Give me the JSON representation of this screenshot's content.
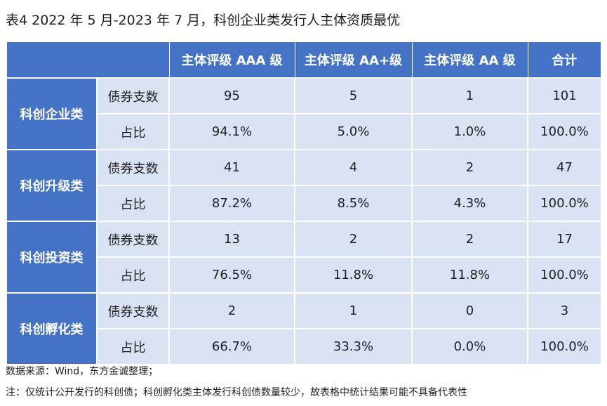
{
  "title": "表4   2022 年 5 月-2023 年 7 月，科创企业类发行人主体资质最优",
  "header": {
    "col0": "",
    "col1": "",
    "col2": "主体评级 AAA 级",
    "col3": "主体评级 AA+级",
    "col4": "主体评级 AA 级",
    "col5": "合计"
  },
  "groups": [
    {
      "name": "科创企业类",
      "rows": [
        {
          "metric": "债券支数",
          "aaa": "95",
          "aa_plus": "5",
          "aa": "1",
          "total": "101"
        },
        {
          "metric": "占比",
          "aaa": "94.1%",
          "aa_plus": "5.0%",
          "aa": "1.0%",
          "total": "100.0%"
        }
      ]
    },
    {
      "name": "科创升级类",
      "rows": [
        {
          "metric": "债券支数",
          "aaa": "41",
          "aa_plus": "4",
          "aa": "2",
          "total": "47"
        },
        {
          "metric": "占比",
          "aaa": "87.2%",
          "aa_plus": "8.5%",
          "aa": "4.3%",
          "total": "100.0%"
        }
      ]
    },
    {
      "name": "科创投资类",
      "rows": [
        {
          "metric": "债券支数",
          "aaa": "13",
          "aa_plus": "2",
          "aa": "2",
          "total": "17"
        },
        {
          "metric": "占比",
          "aaa": "76.5%",
          "aa_plus": "11.8%",
          "aa": "11.8%",
          "total": "100.0%"
        }
      ]
    },
    {
      "name": "科创孵化类",
      "rows": [
        {
          "metric": "债券支数",
          "aaa": "2",
          "aa_plus": "1",
          "aa": "0",
          "total": "3"
        },
        {
          "metric": "占比",
          "aaa": "66.7%",
          "aa_plus": "33.3%",
          "aa": "0.0%",
          "total": "100.0%"
        }
      ]
    }
  ],
  "source_note": "数据来源：Wind，东方金诚整理；",
  "footnote": "注：仅统计公开发行的科创债；科创孵化类主体发行科创债数量较少，故表格中统计结果可能不具备代表性",
  "colors": {
    "header_bg": "#4472c4",
    "cell_bg": "#d9e2f3",
    "header_text": "#ffffff"
  }
}
